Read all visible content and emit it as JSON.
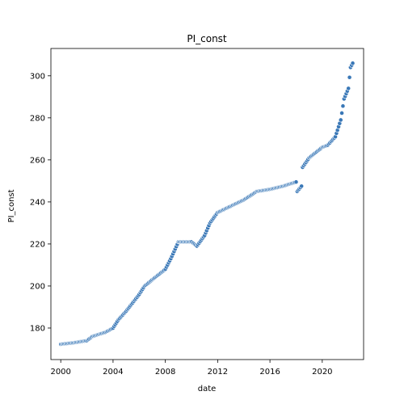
{
  "chart_data": {
    "type": "scatter",
    "title": "PI_const",
    "xlabel": "date",
    "ylabel": "PI_const",
    "xlim": [
      "1999-04-01",
      "2023-03-01"
    ],
    "ylim": [
      165,
      313
    ],
    "x_ticks": [
      "2000",
      "2004",
      "2008",
      "2012",
      "2016",
      "2020"
    ],
    "y_ticks": [
      "180",
      "200",
      "220",
      "240",
      "260",
      "280",
      "300"
    ],
    "y_tick_values": [
      180,
      200,
      220,
      240,
      260,
      280,
      300
    ],
    "grid": false,
    "marker_color": "#3a78b7",
    "curve_points": [
      [
        "2000-01-01",
        172.3
      ],
      [
        "2001-01-01",
        173.0
      ],
      [
        "2002-01-01",
        174.0
      ],
      [
        "2002-06-01",
        176.0
      ],
      [
        "2003-06-01",
        178.0
      ],
      [
        "2004-01-01",
        180.0
      ],
      [
        "2004-06-01",
        184.0
      ],
      [
        "2005-01-01",
        188.0
      ],
      [
        "2006-01-01",
        196.0
      ],
      [
        "2006-06-01",
        200.0
      ],
      [
        "2007-01-01",
        203.0
      ],
      [
        "2008-01-01",
        208.0
      ],
      [
        "2008-06-01",
        213.0
      ],
      [
        "2009-01-01",
        221.0
      ],
      [
        "2010-01-01",
        221.0
      ],
      [
        "2010-06-01",
        219.0
      ],
      [
        "2011-01-01",
        224.0
      ],
      [
        "2011-06-01",
        230.0
      ],
      [
        "2012-01-01",
        235.0
      ],
      [
        "2013-01-01",
        238.0
      ],
      [
        "2014-01-01",
        241.0
      ],
      [
        "2015-01-01",
        245.0
      ],
      [
        "2016-01-01",
        246.0
      ],
      [
        "2017-01-01",
        247.5
      ],
      [
        "2018-01-01",
        249.5
      ],
      [
        "2018-02-01",
        245.0
      ],
      [
        "2018-06-01",
        247.5
      ],
      [
        "2018-07-01",
        256.5
      ],
      [
        "2019-01-01",
        261.0
      ],
      [
        "2020-01-01",
        266.0
      ],
      [
        "2020-06-01",
        267.0
      ],
      [
        "2021-01-01",
        271.0
      ],
      [
        "2021-06-01",
        279.0
      ],
      [
        "2021-09-01",
        289.0
      ],
      [
        "2022-01-01",
        294.0
      ],
      [
        "2022-03-01",
        304.0
      ],
      [
        "2022-05-01",
        306.0
      ]
    ]
  }
}
